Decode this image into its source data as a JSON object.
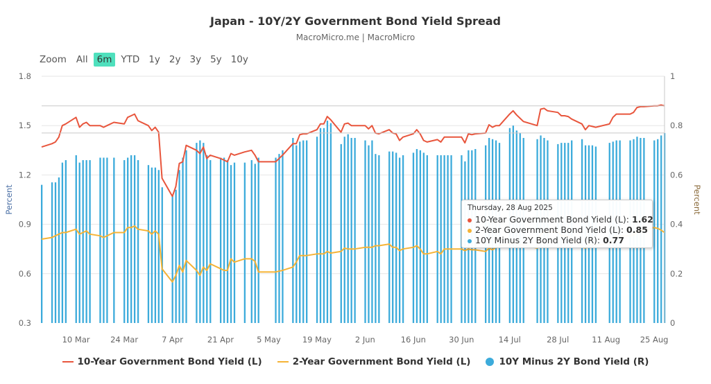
{
  "header": {
    "title": "Japan - 10Y/2Y Government Bond Yield Spread",
    "subtitle": "MacroMicro.me | MacroMicro"
  },
  "range_selector": {
    "label": "Zoom",
    "buttons": [
      "All",
      "6m",
      "YTD",
      "1y",
      "2y",
      "3y",
      "5y",
      "10y"
    ],
    "selected": "6m"
  },
  "tooltip": {
    "date": "Thursday, 28 Aug 2025",
    "rows": [
      {
        "label": "10-Year Government Bond Yield (L): ",
        "value": "1.62",
        "color": "#e8553c"
      },
      {
        "label": "2-Year Government Bond Yield (L): ",
        "value": "0.85",
        "color": "#f5b335"
      },
      {
        "label": "10Y Minus 2Y Bond Yield (R): ",
        "value": "0.77",
        "color": "#3cabdb"
      }
    ]
  },
  "legend": [
    {
      "label": "10-Year Government Bond Yield (L)",
      "color": "#e8553c"
    },
    {
      "label": "2-Year Government Bond Yield (L)",
      "color": "#f5b335"
    },
    {
      "label": "10Y Minus 2Y Bond Yield (R)",
      "color": "#3cabdb"
    }
  ],
  "chart_data": {
    "type": "line+bar",
    "title": "Japan - 10Y/2Y Government Bond Yield Spread",
    "left_axis": {
      "label": "Percent",
      "ylim": [
        0.3,
        1.8
      ],
      "ticks": [
        "1.8",
        "1.5",
        "1.2",
        "0.9",
        "0.6",
        "0.3"
      ]
    },
    "right_axis": {
      "label": "Percent",
      "ylim": [
        0,
        1
      ],
      "ticks": [
        "1",
        "0.8",
        "0.6",
        "0.4",
        "0.2",
        "0"
      ]
    },
    "x_range": [
      "2025-02-28",
      "2025-08-28"
    ],
    "x_ticks": [
      {
        "date": "2025-03-10",
        "label": "10 Mar"
      },
      {
        "date": "2025-03-24",
        "label": "24 Mar"
      },
      {
        "date": "2025-04-07",
        "label": "7 Apr"
      },
      {
        "date": "2025-04-21",
        "label": "21 Apr"
      },
      {
        "date": "2025-05-05",
        "label": "5 May"
      },
      {
        "date": "2025-05-19",
        "label": "19 May"
      },
      {
        "date": "2025-06-02",
        "label": "2 Jun"
      },
      {
        "date": "2025-06-16",
        "label": "16 Jun"
      },
      {
        "date": "2025-06-30",
        "label": "30 Jun"
      },
      {
        "date": "2025-07-14",
        "label": "14 Jul"
      },
      {
        "date": "2025-07-28",
        "label": "28 Jul"
      },
      {
        "date": "2025-08-11",
        "label": "11 Aug"
      },
      {
        "date": "2025-08-25",
        "label": "25 Aug"
      }
    ],
    "grid": true,
    "legend_position": "bottom",
    "dates": [
      "2025-02-28",
      "2025-03-03",
      "2025-03-04",
      "2025-03-05",
      "2025-03-06",
      "2025-03-07",
      "2025-03-10",
      "2025-03-11",
      "2025-03-12",
      "2025-03-13",
      "2025-03-14",
      "2025-03-17",
      "2025-03-18",
      "2025-03-19",
      "2025-03-21",
      "2025-03-24",
      "2025-03-25",
      "2025-03-26",
      "2025-03-27",
      "2025-03-28",
      "2025-03-31",
      "2025-04-01",
      "2025-04-02",
      "2025-04-03",
      "2025-04-04",
      "2025-04-07",
      "2025-04-08",
      "2025-04-09",
      "2025-04-10",
      "2025-04-11",
      "2025-04-14",
      "2025-04-15",
      "2025-04-16",
      "2025-04-17",
      "2025-04-18",
      "2025-04-21",
      "2025-04-22",
      "2025-04-23",
      "2025-04-24",
      "2025-04-25",
      "2025-04-28",
      "2025-04-30",
      "2025-05-01",
      "2025-05-02",
      "2025-05-07",
      "2025-05-08",
      "2025-05-09",
      "2025-05-12",
      "2025-05-13",
      "2025-05-14",
      "2025-05-15",
      "2025-05-16",
      "2025-05-19",
      "2025-05-20",
      "2025-05-21",
      "2025-05-22",
      "2025-05-23",
      "2025-05-26",
      "2025-05-27",
      "2025-05-28",
      "2025-05-29",
      "2025-05-30",
      "2025-06-02",
      "2025-06-03",
      "2025-06-04",
      "2025-06-05",
      "2025-06-06",
      "2025-06-09",
      "2025-06-10",
      "2025-06-11",
      "2025-06-12",
      "2025-06-13",
      "2025-06-16",
      "2025-06-17",
      "2025-06-18",
      "2025-06-19",
      "2025-06-20",
      "2025-06-23",
      "2025-06-24",
      "2025-06-25",
      "2025-06-26",
      "2025-06-27",
      "2025-06-30",
      "2025-07-01",
      "2025-07-02",
      "2025-07-03",
      "2025-07-04",
      "2025-07-07",
      "2025-07-08",
      "2025-07-09",
      "2025-07-10",
      "2025-07-11",
      "2025-07-14",
      "2025-07-15",
      "2025-07-16",
      "2025-07-17",
      "2025-07-18",
      "2025-07-22",
      "2025-07-23",
      "2025-07-24",
      "2025-07-25",
      "2025-07-28",
      "2025-07-29",
      "2025-07-30",
      "2025-07-31",
      "2025-08-01",
      "2025-08-04",
      "2025-08-05",
      "2025-08-06",
      "2025-08-07",
      "2025-08-08",
      "2025-08-12",
      "2025-08-13",
      "2025-08-14",
      "2025-08-15",
      "2025-08-18",
      "2025-08-19",
      "2025-08-20",
      "2025-08-21",
      "2025-08-22",
      "2025-08-25",
      "2025-08-26",
      "2025-08-27",
      "2025-08-28"
    ],
    "series": [
      {
        "name": "10-Year Government Bond Yield (L)",
        "type": "line",
        "axis": "left",
        "color": "#e8553c",
        "values": [
          1.37,
          1.39,
          1.4,
          1.43,
          1.5,
          1.51,
          1.55,
          1.49,
          1.51,
          1.52,
          1.5,
          1.5,
          1.49,
          1.5,
          1.52,
          1.51,
          1.55,
          1.56,
          1.57,
          1.53,
          1.5,
          1.47,
          1.49,
          1.46,
          1.18,
          1.07,
          1.13,
          1.27,
          1.28,
          1.38,
          1.35,
          1.33,
          1.37,
          1.3,
          1.32,
          1.3,
          1.29,
          1.28,
          1.33,
          1.32,
          1.34,
          1.35,
          1.32,
          1.28,
          1.28,
          1.3,
          1.32,
          1.39,
          1.39,
          1.445,
          1.45,
          1.45,
          1.475,
          1.51,
          1.51,
          1.555,
          1.535,
          1.46,
          1.51,
          1.515,
          1.5,
          1.5,
          1.5,
          1.48,
          1.5,
          1.455,
          1.45,
          1.475,
          1.455,
          1.45,
          1.41,
          1.43,
          1.45,
          1.475,
          1.45,
          1.41,
          1.4,
          1.415,
          1.4,
          1.43,
          1.43,
          1.43,
          1.43,
          1.395,
          1.45,
          1.445,
          1.45,
          1.455,
          1.505,
          1.49,
          1.5,
          1.5,
          1.57,
          1.59,
          1.565,
          1.545,
          1.525,
          1.5,
          1.6,
          1.605,
          1.59,
          1.58,
          1.56,
          1.56,
          1.555,
          1.54,
          1.51,
          1.475,
          1.5,
          1.495,
          1.49,
          1.51,
          1.55,
          1.57,
          1.57,
          1.57,
          1.58,
          1.61,
          1.615,
          1.615,
          1.62,
          1.62,
          1.625,
          1.62
        ]
      },
      {
        "name": "2-Year Government Bond Yield (L)",
        "type": "line",
        "axis": "left",
        "color": "#f5b335",
        "values": [
          0.81,
          0.82,
          0.83,
          0.84,
          0.85,
          0.85,
          0.87,
          0.84,
          0.85,
          0.86,
          0.84,
          0.83,
          0.82,
          0.83,
          0.85,
          0.85,
          0.88,
          0.88,
          0.89,
          0.87,
          0.86,
          0.84,
          0.86,
          0.84,
          0.63,
          0.55,
          0.59,
          0.65,
          0.61,
          0.68,
          0.62,
          0.59,
          0.64,
          0.62,
          0.66,
          0.63,
          0.62,
          0.62,
          0.69,
          0.67,
          0.69,
          0.69,
          0.675,
          0.61,
          0.61,
          0.615,
          0.62,
          0.64,
          0.67,
          0.71,
          0.71,
          0.71,
          0.72,
          0.72,
          0.72,
          0.735,
          0.725,
          0.735,
          0.755,
          0.75,
          0.75,
          0.75,
          0.76,
          0.76,
          0.76,
          0.77,
          0.77,
          0.78,
          0.76,
          0.76,
          0.74,
          0.75,
          0.76,
          0.77,
          0.75,
          0.72,
          0.72,
          0.735,
          0.72,
          0.75,
          0.75,
          0.75,
          0.75,
          0.74,
          0.75,
          0.745,
          0.745,
          0.735,
          0.755,
          0.745,
          0.76,
          0.77,
          0.78,
          0.79,
          0.785,
          0.775,
          0.775,
          0.755,
          0.84,
          0.855,
          0.85,
          0.855,
          0.83,
          0.83,
          0.825,
          0.8,
          0.765,
          0.755,
          0.78,
          0.775,
          0.775,
          0.78,
          0.815,
          0.83,
          0.83,
          0.83,
          0.835,
          0.855,
          0.865,
          0.865,
          0.88,
          0.875,
          0.865,
          0.85
        ]
      },
      {
        "name": "10Y Minus 2Y Bond Yield (R)",
        "type": "bar",
        "axis": "right",
        "color": "#3cabdb",
        "values": [
          0.56,
          0.57,
          0.57,
          0.59,
          0.65,
          0.66,
          0.68,
          0.65,
          0.66,
          0.66,
          0.66,
          0.67,
          0.67,
          0.67,
          0.67,
          0.66,
          0.67,
          0.68,
          0.68,
          0.66,
          0.64,
          0.63,
          0.63,
          0.62,
          0.55,
          0.52,
          0.54,
          0.62,
          0.67,
          0.7,
          0.73,
          0.74,
          0.73,
          0.68,
          0.66,
          0.67,
          0.67,
          0.66,
          0.64,
          0.65,
          0.65,
          0.66,
          0.645,
          0.67,
          0.67,
          0.685,
          0.7,
          0.75,
          0.72,
          0.735,
          0.74,
          0.74,
          0.755,
          0.79,
          0.79,
          0.82,
          0.81,
          0.725,
          0.755,
          0.765,
          0.75,
          0.75,
          0.74,
          0.72,
          0.74,
          0.685,
          0.68,
          0.695,
          0.695,
          0.69,
          0.67,
          0.68,
          0.69,
          0.705,
          0.7,
          0.69,
          0.68,
          0.68,
          0.68,
          0.68,
          0.68,
          0.68,
          0.68,
          0.655,
          0.7,
          0.7,
          0.705,
          0.72,
          0.75,
          0.745,
          0.74,
          0.73,
          0.79,
          0.8,
          0.78,
          0.77,
          0.75,
          0.745,
          0.76,
          0.75,
          0.74,
          0.725,
          0.73,
          0.73,
          0.73,
          0.74,
          0.745,
          0.72,
          0.72,
          0.72,
          0.715,
          0.73,
          0.735,
          0.74,
          0.74,
          0.74,
          0.745,
          0.755,
          0.75,
          0.75,
          0.74,
          0.745,
          0.76,
          0.77
        ]
      }
    ]
  }
}
